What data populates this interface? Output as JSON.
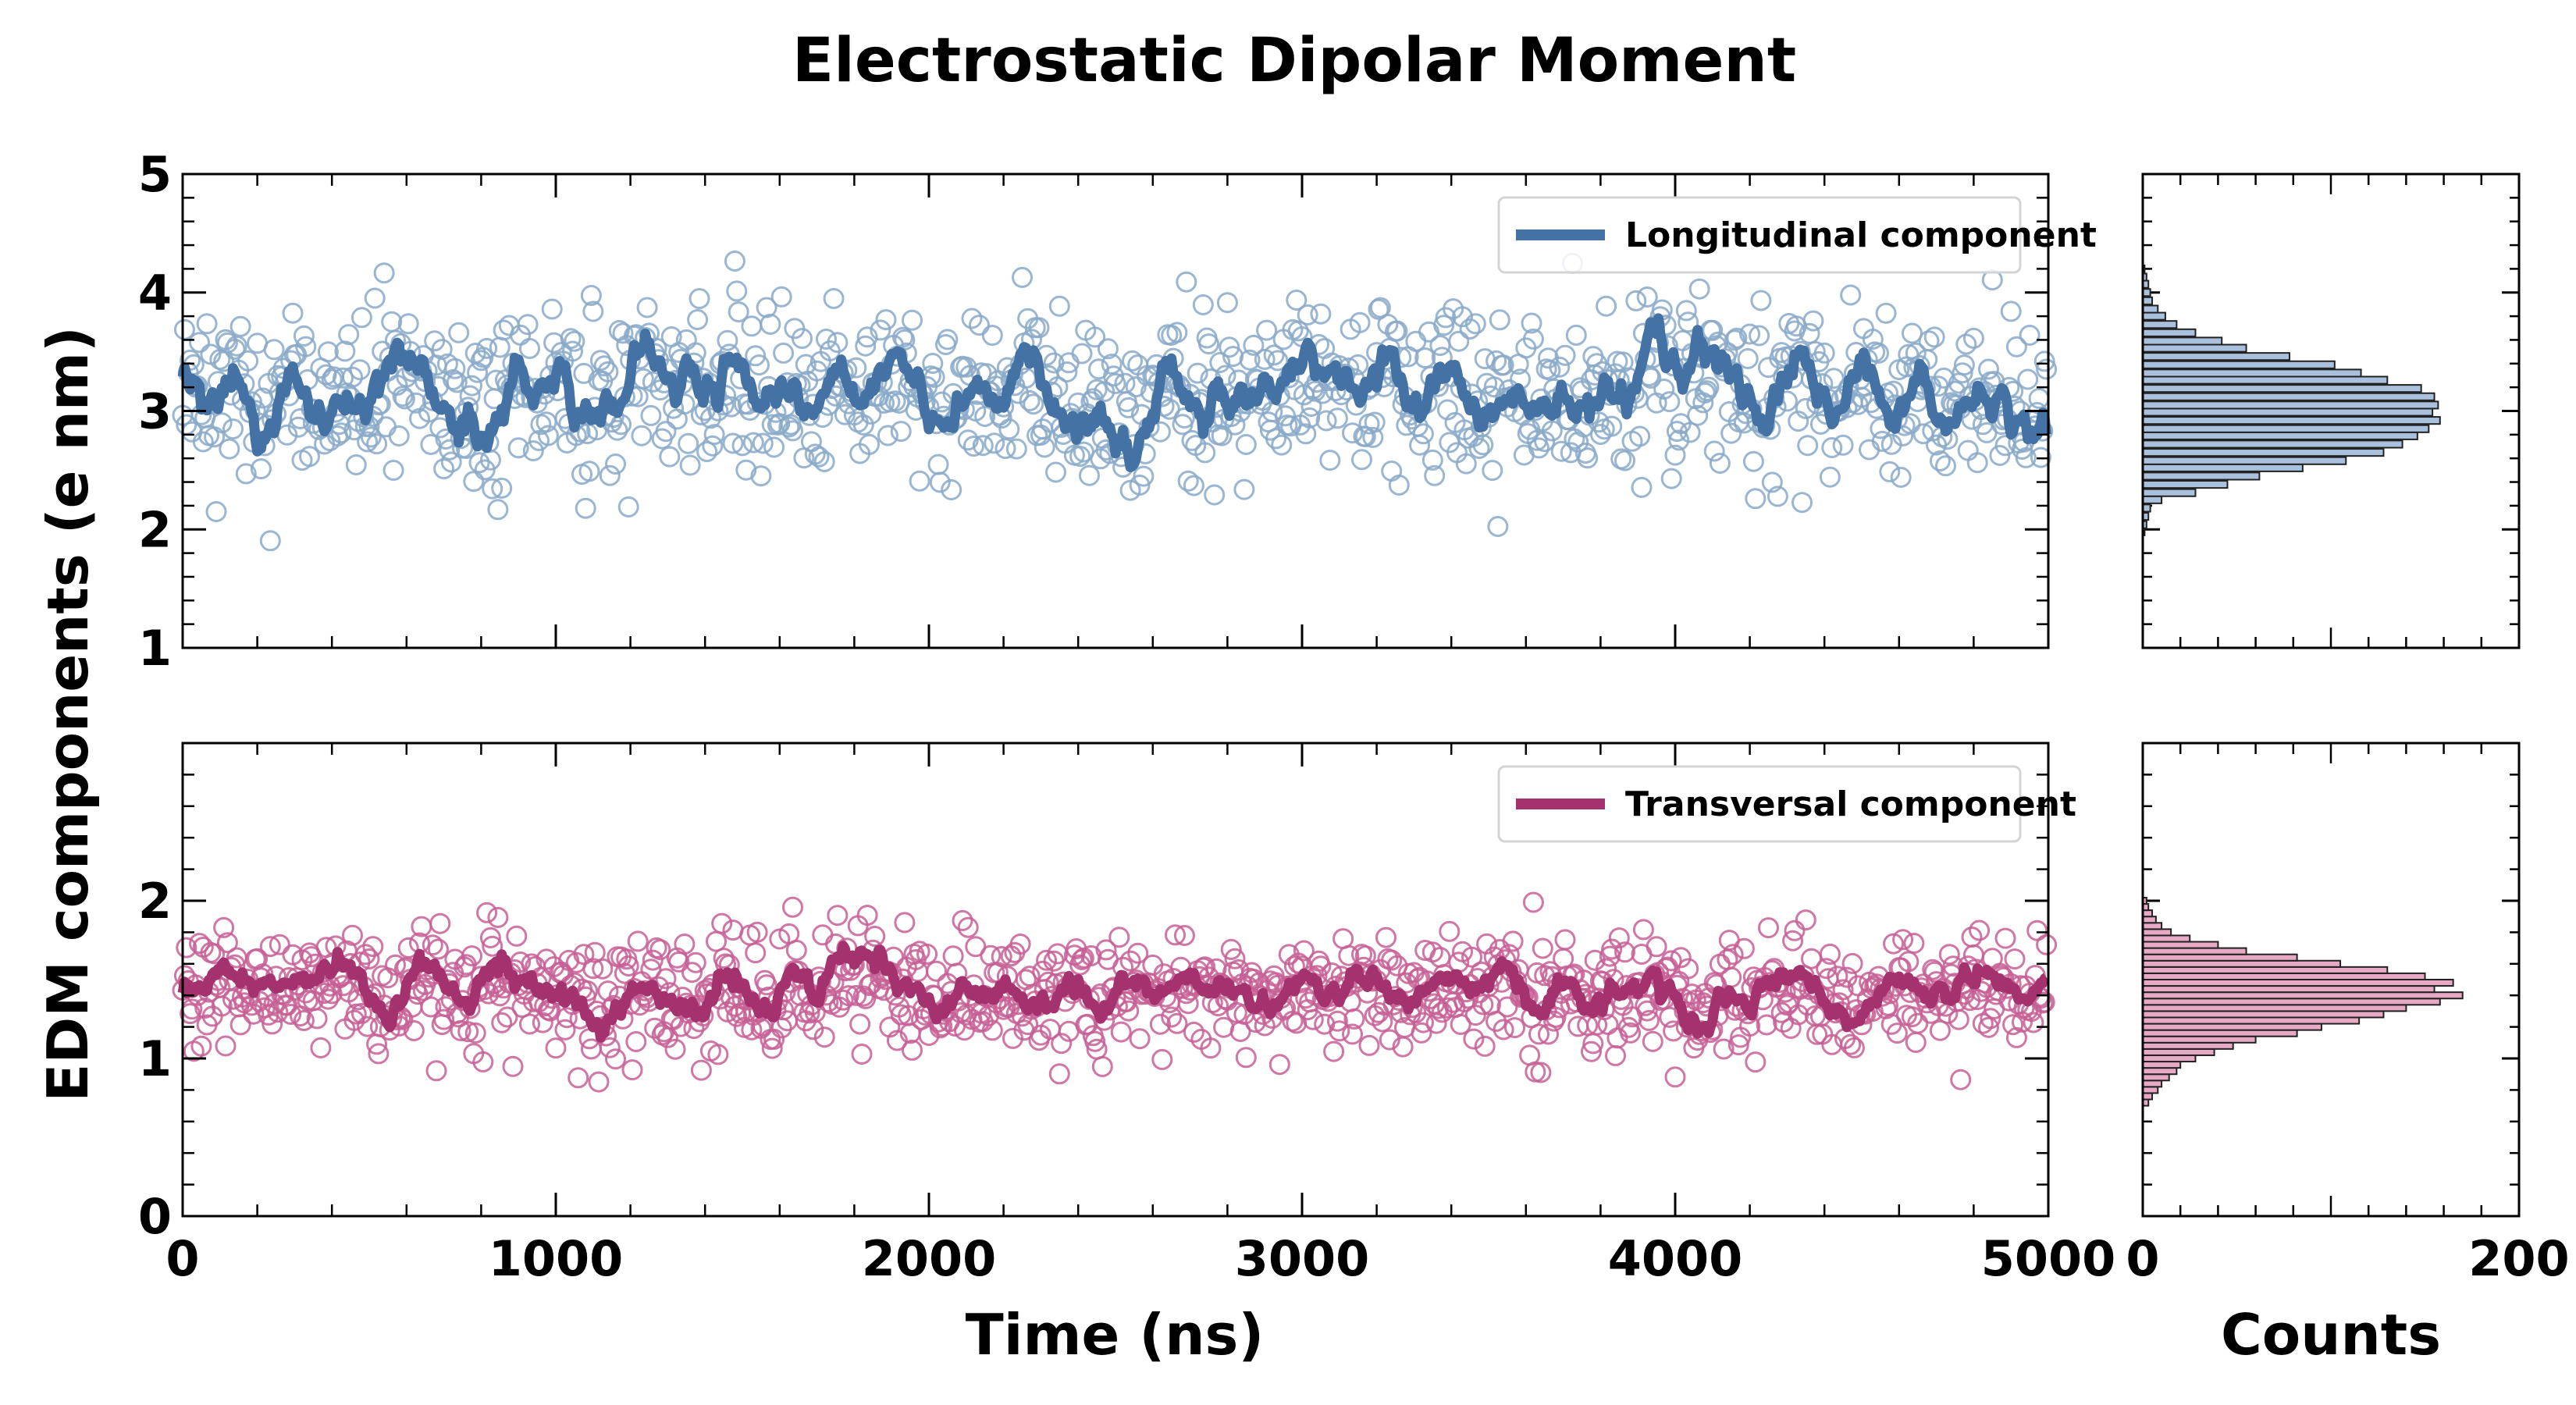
{
  "chart_data": {
    "type": "scatter",
    "title": "Electrostatic Dipolar Moment",
    "ylabel": "EDM components (e nm)",
    "xlabel": "Time (ns)",
    "hist_xlabel": "Counts",
    "x_ticks": [
      "0",
      "1000",
      "2000",
      "3000",
      "4000",
      "5000"
    ],
    "hist_x_ticks": [
      "0",
      "200"
    ],
    "xlim": [
      0,
      5000
    ],
    "hist_xlim": [
      0,
      200
    ],
    "panels": [
      {
        "name": "longitudinal",
        "legend": "Longitudinal component",
        "legend_position": "top-right",
        "color": "#4472a4",
        "marker_color": "#8aa9c8",
        "hist_fill": "#a9c1dc",
        "ylim": [
          1,
          5
        ],
        "y_ticks": [
          "1",
          "2",
          "3",
          "4",
          "5"
        ],
        "mean": 3.15,
        "std": 0.38,
        "smooth_std": 0.13,
        "n_points": 1000,
        "hist_bins": [
          [
            1.98,
            1
          ],
          [
            2.04,
            2
          ],
          [
            2.11,
            3
          ],
          [
            2.18,
            4
          ],
          [
            2.25,
            10
          ],
          [
            2.31,
            28
          ],
          [
            2.38,
            45
          ],
          [
            2.45,
            62
          ],
          [
            2.52,
            85
          ],
          [
            2.58,
            108
          ],
          [
            2.65,
            128
          ],
          [
            2.72,
            138
          ],
          [
            2.79,
            146
          ],
          [
            2.85,
            152
          ],
          [
            2.92,
            158
          ],
          [
            2.99,
            154
          ],
          [
            3.05,
            157
          ],
          [
            3.12,
            155
          ],
          [
            3.19,
            148
          ],
          [
            3.26,
            130
          ],
          [
            3.32,
            116
          ],
          [
            3.39,
            102
          ],
          [
            3.46,
            78
          ],
          [
            3.53,
            55
          ],
          [
            3.59,
            42
          ],
          [
            3.66,
            28
          ],
          [
            3.73,
            18
          ],
          [
            3.8,
            12
          ],
          [
            3.86,
            8
          ],
          [
            3.93,
            5
          ],
          [
            4.0,
            4
          ],
          [
            4.07,
            3
          ],
          [
            4.13,
            2
          ],
          [
            4.2,
            1
          ]
        ]
      },
      {
        "name": "transversal",
        "legend": "Transversal component",
        "legend_position": "top-right",
        "color": "#a3326e",
        "marker_color": "#c75f95",
        "hist_fill": "#e7a9c4",
        "ylim": [
          0,
          3
        ],
        "y_ticks": [
          "0",
          "1",
          "2"
        ],
        "mean": 1.4,
        "std": 0.19,
        "smooth_std": 0.07,
        "n_points": 1000,
        "hist_bins": [
          [
            0.72,
            3
          ],
          [
            0.76,
            5
          ],
          [
            0.8,
            8
          ],
          [
            0.84,
            10
          ],
          [
            0.88,
            14
          ],
          [
            0.92,
            18
          ],
          [
            0.96,
            20
          ],
          [
            1.0,
            28
          ],
          [
            1.04,
            38
          ],
          [
            1.08,
            48
          ],
          [
            1.12,
            60
          ],
          [
            1.16,
            82
          ],
          [
            1.2,
            95
          ],
          [
            1.24,
            115
          ],
          [
            1.28,
            128
          ],
          [
            1.32,
            140
          ],
          [
            1.36,
            158
          ],
          [
            1.4,
            170
          ],
          [
            1.44,
            155
          ],
          [
            1.48,
            165
          ],
          [
            1.52,
            150
          ],
          [
            1.56,
            130
          ],
          [
            1.6,
            105
          ],
          [
            1.64,
            82
          ],
          [
            1.68,
            55
          ],
          [
            1.72,
            40
          ],
          [
            1.76,
            25
          ],
          [
            1.8,
            15
          ],
          [
            1.84,
            10
          ],
          [
            1.88,
            7
          ],
          [
            1.92,
            5
          ],
          [
            1.96,
            3
          ],
          [
            2.0,
            2
          ]
        ]
      }
    ]
  }
}
